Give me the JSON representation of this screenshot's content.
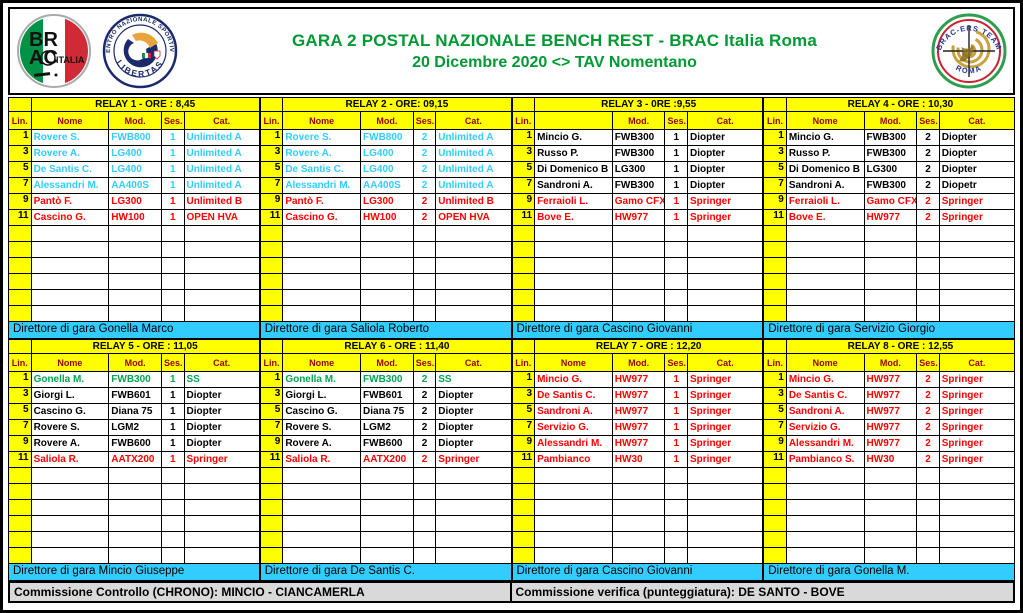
{
  "header": {
    "title_line1": "GARA 2 POSTAL NAZIONALE BENCH REST - BRAC Italia Roma",
    "title_line2": "20 Dicembre  2020 <> TAV Nomentano",
    "logos": {
      "brac_italia": {
        "text_top": "BR",
        "text_bottom": "AC",
        "label": "ITALIA"
      },
      "libertas": {
        "arc_top": "CENTRO NAZIONALE SPORTIVO",
        "arc_bottom": "LIBERTAS"
      },
      "bracers": {
        "arc_top": "BRAC-ERS TEAM",
        "arc_bottom": "ROMA"
      }
    }
  },
  "layout": {
    "blank_rows": 6
  },
  "colors": {
    "yellow": "#FFFF00",
    "cyan_bar": "#33CCFF",
    "text_blue": "#33CCFF",
    "text_red": "#FF0000",
    "text_green": "#00A550",
    "header_maroon": "#990000",
    "title_green": "#009933",
    "footer_gray": "#D9D9D9"
  },
  "relays": [
    {
      "title": "RELAY 1 - ORE : 8,45",
      "director": "Direttore di gara Gonella Marco",
      "columns": [
        "Lin.",
        "Nome",
        "Mod.",
        "Ses.",
        "Cat."
      ],
      "rows": [
        {
          "lin": "1",
          "nome": "Rovere S.",
          "mod": "FWB800",
          "ses": "1",
          "cat": "Unlimited A",
          "color": "blue"
        },
        {
          "lin": "3",
          "nome": "Rovere A.",
          "mod": "LG400",
          "ses": "1",
          "cat": "Unlimited A",
          "color": "blue"
        },
        {
          "lin": "5",
          "nome": "De Santis C.",
          "mod": "LG400",
          "ses": "1",
          "cat": "Unlimited A",
          "color": "blue"
        },
        {
          "lin": "7",
          "nome": "Alessandri M.",
          "mod": "AA400S",
          "ses": "1",
          "cat": "Unlimited A",
          "color": "blue"
        },
        {
          "lin": "9",
          "nome": "Pantò F.",
          "mod": "LG300",
          "ses": "1",
          "cat": "Unlimited B",
          "color": "red"
        },
        {
          "lin": "11",
          "nome": "Cascino G.",
          "mod": "HW100",
          "ses": "1",
          "cat": "OPEN HVA",
          "color": "red"
        }
      ]
    },
    {
      "title": "RELAY 2 - ORE: 09,15",
      "director": "Direttore di gara Saliola Roberto",
      "columns": [
        "Lin.",
        "Nome",
        "Mod.",
        "Ses.",
        "Cat."
      ],
      "rows": [
        {
          "lin": "1",
          "nome": "Rovere S.",
          "mod": "FWB800",
          "ses": "2",
          "cat": "Unlimited A",
          "color": "blue"
        },
        {
          "lin": "3",
          "nome": "Rovere A.",
          "mod": "LG400",
          "ses": "2",
          "cat": "Unlimited A",
          "color": "blue"
        },
        {
          "lin": "5",
          "nome": "De Santis C.",
          "mod": "LG400",
          "ses": "2",
          "cat": "Unlimited A",
          "color": "blue"
        },
        {
          "lin": "7",
          "nome": "Alessandri M.",
          "mod": "AA400S",
          "ses": "2",
          "cat": "Unlimited A",
          "color": "blue"
        },
        {
          "lin": "9",
          "nome": "Pantò F.",
          "mod": "LG300",
          "ses": "2",
          "cat": "Unlimited B",
          "color": "red"
        },
        {
          "lin": "11",
          "nome": "Cascino G.",
          "mod": "HW100",
          "ses": "2",
          "cat": "OPEN HVA",
          "color": "red"
        }
      ]
    },
    {
      "title": "RELAY 3 - 0RE :9,55",
      "director": "Direttore di gara Cascino Giovanni",
      "columns": [
        "Lin.",
        "",
        "Mod.",
        "Ses.",
        "Cat."
      ],
      "rows": [
        {
          "lin": "1",
          "nome": "Mincio G.",
          "mod": "FWB300",
          "ses": "1",
          "cat": "Diopter",
          "color": "black"
        },
        {
          "lin": "3",
          "nome": "Russo P.",
          "mod": "FWB300",
          "ses": "1",
          "cat": "Diopter",
          "color": "black"
        },
        {
          "lin": "5",
          "nome": "Di Domenico B",
          "mod": "LG300",
          "ses": "1",
          "cat": "Diopter",
          "color": "black"
        },
        {
          "lin": "7",
          "nome": "Sandroni A.",
          "mod": "FWB300",
          "ses": "1",
          "cat": "Diopter",
          "color": "black"
        },
        {
          "lin": "9",
          "nome": "Ferraioli L.",
          "mod": "Gamo CFX",
          "ses": "1",
          "cat": "Springer",
          "color": "red"
        },
        {
          "lin": "11",
          "nome": "Bove E.",
          "mod": "HW977",
          "ses": "1",
          "cat": "Springer",
          "color": "red"
        }
      ]
    },
    {
      "title": "RELAY 4 - ORE : 10,30",
      "director": "Direttore di gara Servizio Giorgio",
      "columns": [
        "Lin.",
        "Nome",
        "Mod.",
        "Ses.",
        "Cat."
      ],
      "rows": [
        {
          "lin": "1",
          "nome": "Mincio G.",
          "mod": "FWB300",
          "ses": "2",
          "cat": "Diopter",
          "color": "black"
        },
        {
          "lin": "3",
          "nome": "Russo P.",
          "mod": "FWB300",
          "ses": "2",
          "cat": "Diopter",
          "color": "black"
        },
        {
          "lin": "5",
          "nome": "Di Domenico B",
          "mod": "LG300",
          "ses": "2",
          "cat": "Diopter",
          "color": "black"
        },
        {
          "lin": "7",
          "nome": "Sandroni A.",
          "mod": "FWB300",
          "ses": "2",
          "cat": "Diopetr",
          "color": "black"
        },
        {
          "lin": "9",
          "nome": "Ferraioli L.",
          "mod": "Gamo CFX",
          "ses": "2",
          "cat": "Springer",
          "color": "red"
        },
        {
          "lin": "11",
          "nome": "Bove E.",
          "mod": "HW977",
          "ses": "2",
          "cat": "Springer",
          "color": "red"
        }
      ]
    },
    {
      "title": "RELAY 5 - ORE : 11,05",
      "director": "Direttore di gara Mincio Giuseppe",
      "columns": [
        "Lin.",
        "Nome",
        "Mod.",
        "Ses.",
        "Cat."
      ],
      "rows": [
        {
          "lin": "1",
          "nome": "Gonella M.",
          "mod": "FWB300",
          "ses": "1",
          "cat": "SS",
          "color": "green"
        },
        {
          "lin": "3",
          "nome": "Giorgi L.",
          "mod": "FWB601",
          "ses": "1",
          "cat": "Diopter",
          "color": "black"
        },
        {
          "lin": "5",
          "nome": "Cascino G.",
          "mod": "Diana 75",
          "ses": "1",
          "cat": "Diopter",
          "color": "black"
        },
        {
          "lin": "7",
          "nome": "Rovere S.",
          "mod": "LGM2",
          "ses": "1",
          "cat": "Diopter",
          "color": "black"
        },
        {
          "lin": "9",
          "nome": "Rovere A.",
          "mod": "FWB600",
          "ses": "1",
          "cat": "Diopter",
          "color": "black"
        },
        {
          "lin": "11",
          "nome": "Saliola R.",
          "mod": "AATX200",
          "ses": "1",
          "cat": "Springer",
          "color": "red"
        }
      ]
    },
    {
      "title": "RELAY 6 - ORE : 11,40",
      "director": "Direttore di gara De Santis C.",
      "columns": [
        "Lin.",
        "Nome",
        "Mod.",
        "Ses.",
        "Cat."
      ],
      "rows": [
        {
          "lin": "1",
          "nome": "Gonella M.",
          "mod": "FWB300",
          "ses": "2",
          "cat": "SS",
          "color": "green"
        },
        {
          "lin": "3",
          "nome": "Giorgi L.",
          "mod": "FWB601",
          "ses": "2",
          "cat": "Diopter",
          "color": "black"
        },
        {
          "lin": "5",
          "nome": "Cascino G.",
          "mod": "Diana 75",
          "ses": "2",
          "cat": "Diopter",
          "color": "black"
        },
        {
          "lin": "7",
          "nome": "Rovere S.",
          "mod": "LGM2",
          "ses": "2",
          "cat": "Diopter",
          "color": "black"
        },
        {
          "lin": "9",
          "nome": "Rovere A.",
          "mod": "FWB600",
          "ses": "2",
          "cat": "Diopter",
          "color": "black"
        },
        {
          "lin": "11",
          "nome": "Saliola R.",
          "mod": "AATX200",
          "ses": "2",
          "cat": "Springer",
          "color": "red"
        }
      ]
    },
    {
      "title": "RELAY 7 - ORE : 12,20",
      "director": "Direttore di gara Cascino Giovanni",
      "columns": [
        "Lin.",
        "Nome",
        "Mod.",
        "Ses.",
        "Cat."
      ],
      "rows": [
        {
          "lin": "1",
          "nome": "Mincio G.",
          "mod": "HW977",
          "ses": "1",
          "cat": "Springer",
          "color": "red"
        },
        {
          "lin": "3",
          "nome": "De Santis C.",
          "mod": "HW977",
          "ses": "1",
          "cat": "Springer",
          "color": "red"
        },
        {
          "lin": "5",
          "nome": "Sandroni A.",
          "mod": "HW977",
          "ses": "1",
          "cat": "Springer",
          "color": "red"
        },
        {
          "lin": "7",
          "nome": "Servizio G.",
          "mod": "HW977",
          "ses": "1",
          "cat": "Springer",
          "color": "red"
        },
        {
          "lin": "9",
          "nome": "Alessandri M.",
          "mod": "HW977",
          "ses": "1",
          "cat": "Springer",
          "color": "red"
        },
        {
          "lin": "11",
          "nome": "Pambianco",
          "mod": "HW30",
          "ses": "1",
          "cat": "Springer",
          "color": "red"
        }
      ]
    },
    {
      "title": "RELAY 8 - ORE : 12,55",
      "director": "Direttore di gara Gonella M.",
      "columns": [
        "Lin.",
        "Nome",
        "Mod.",
        "Ses.",
        "Cat."
      ],
      "rows": [
        {
          "lin": "1",
          "nome": "Mincio G.",
          "mod": "HW977",
          "ses": "2",
          "cat": "Springer",
          "color": "red"
        },
        {
          "lin": "3",
          "nome": "De Santis C.",
          "mod": "HW977",
          "ses": "2",
          "cat": "Springer",
          "color": "red"
        },
        {
          "lin": "5",
          "nome": "Sandroni A.",
          "mod": "HW977",
          "ses": "2",
          "cat": "Springer",
          "color": "red"
        },
        {
          "lin": "7",
          "nome": "Servizio G.",
          "mod": "HW977",
          "ses": "2",
          "cat": "Springer",
          "color": "red"
        },
        {
          "lin": "9",
          "nome": "Alessandri M.",
          "mod": "HW977",
          "ses": "2",
          "cat": "Springer",
          "color": "red"
        },
        {
          "lin": "11",
          "nome": "Pambianco S.",
          "mod": "HW30",
          "ses": "2",
          "cat": "Springer",
          "color": "red"
        }
      ]
    }
  ],
  "footer": {
    "commission_left": "Commissione Controllo (CHRONO): MINCIO - CIANCAMERLA",
    "commission_right": "Commissione verifica (punteggiatura): DE SANTO - BOVE"
  }
}
